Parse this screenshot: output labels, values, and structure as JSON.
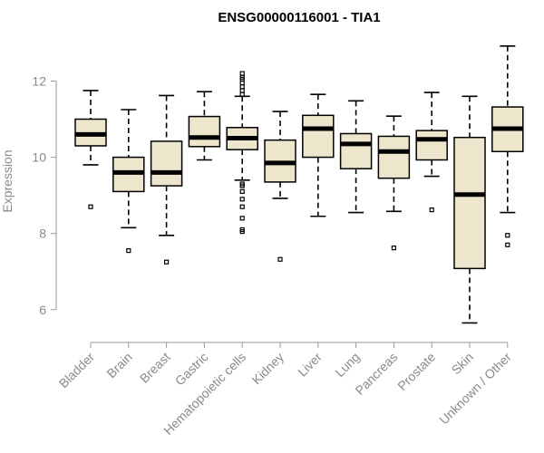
{
  "chart_data": {
    "type": "boxplot",
    "title": "ENSG00000116001 - TIA1",
    "xlabel": "",
    "ylabel": "Expression",
    "ylim": [
      5.4,
      13.2
    ],
    "yticks": [
      6,
      8,
      10,
      12
    ],
    "box_fill": "#ede6cc",
    "categories": [
      "Bladder",
      "Brain",
      "Breast",
      "Gastric",
      "Hematopoietic cells",
      "Kidney",
      "Liver",
      "Lung",
      "Pancreas",
      "Prostate",
      "Skin",
      "Unknown / Other"
    ],
    "boxes": [
      {
        "name": "Bladder",
        "whislo": 9.8,
        "q1": 10.3,
        "med": 10.6,
        "q3": 11.0,
        "whishi": 11.75,
        "fliers": [
          8.7
        ]
      },
      {
        "name": "Brain",
        "whislo": 8.15,
        "q1": 9.1,
        "med": 9.6,
        "q3": 10.0,
        "whishi": 11.25,
        "fliers": [
          7.55
        ]
      },
      {
        "name": "Breast",
        "whislo": 7.95,
        "q1": 9.25,
        "med": 9.6,
        "q3": 10.42,
        "whishi": 11.62,
        "fliers": [
          7.25
        ]
      },
      {
        "name": "Gastric",
        "whislo": 9.93,
        "q1": 10.28,
        "med": 10.52,
        "q3": 11.07,
        "whishi": 11.72,
        "fliers": []
      },
      {
        "name": "Hematopoietic cells",
        "whislo": 9.4,
        "q1": 10.2,
        "med": 10.5,
        "q3": 10.78,
        "whishi": 11.6,
        "fliers": [
          8.05,
          8.1,
          8.4,
          8.7,
          8.9,
          9.1,
          9.25,
          9.3,
          11.65,
          11.75,
          11.85,
          11.95,
          12.05,
          12.1,
          12.2
        ]
      },
      {
        "name": "Kidney",
        "whislo": 8.92,
        "q1": 9.35,
        "med": 9.85,
        "q3": 10.45,
        "whishi": 11.2,
        "fliers": [
          7.32
        ]
      },
      {
        "name": "Liver",
        "whislo": 8.45,
        "q1": 10.0,
        "med": 10.75,
        "q3": 11.1,
        "whishi": 11.65,
        "fliers": []
      },
      {
        "name": "Lung",
        "whislo": 8.55,
        "q1": 9.7,
        "med": 10.35,
        "q3": 10.62,
        "whishi": 11.48,
        "fliers": []
      },
      {
        "name": "Pancreas",
        "whislo": 8.58,
        "q1": 9.45,
        "med": 10.15,
        "q3": 10.55,
        "whishi": 11.08,
        "fliers": [
          7.62
        ]
      },
      {
        "name": "Prostate",
        "whislo": 9.5,
        "q1": 9.93,
        "med": 10.47,
        "q3": 10.7,
        "whishi": 11.7,
        "fliers": [
          8.62
        ]
      },
      {
        "name": "Skin",
        "whislo": 5.65,
        "q1": 7.08,
        "med": 9.02,
        "q3": 10.52,
        "whishi": 11.6,
        "fliers": []
      },
      {
        "name": "Unknown / Other",
        "whislo": 8.55,
        "q1": 10.15,
        "med": 10.75,
        "q3": 11.32,
        "whishi": 12.92,
        "fliers": [
          7.7,
          7.95
        ]
      }
    ]
  }
}
